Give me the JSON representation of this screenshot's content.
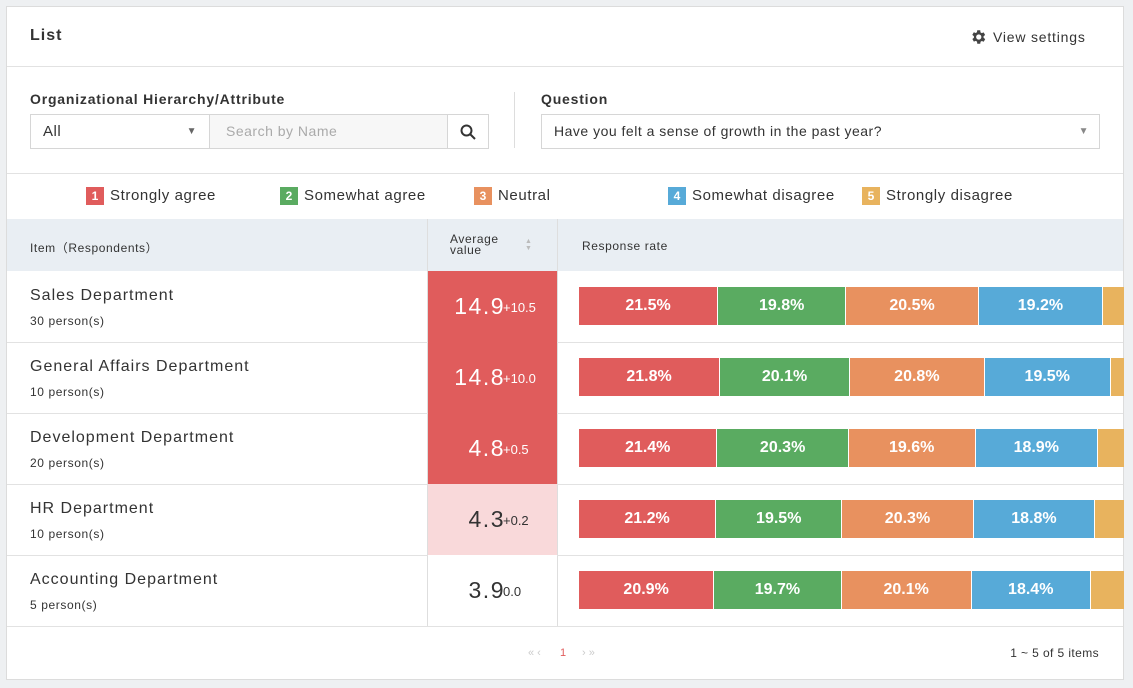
{
  "header": {
    "title": "List",
    "settings": "View settings"
  },
  "filters": {
    "hierarchy_label": "Organizational Hierarchy/Attribute",
    "hierarchy_value": "All",
    "search_placeholder": "Search by Name",
    "question_label": "Question",
    "question_value": "Have you felt a sense of growth in the past year?"
  },
  "legend": [
    {
      "num": "1",
      "label": "Strongly agree",
      "color": "#e05c5c"
    },
    {
      "num": "2",
      "label": "Somewhat agree",
      "color": "#5aab61"
    },
    {
      "num": "3",
      "label": "Neutral",
      "color": "#e8915f"
    },
    {
      "num": "4",
      "label": "Somewhat disagree",
      "color": "#57aad8"
    },
    {
      "num": "5",
      "label": "Strongly disagree",
      "color": "#e8b35e"
    }
  ],
  "table": {
    "columns": [
      "Item（Respondents）",
      "Average value",
      "Response rate"
    ],
    "rows": [
      {
        "name": "Sales Department",
        "respondents": "30 person(s)",
        "average": 14.9,
        "diff": "+10.5",
        "average_color": "#e05c5c",
        "rates": [
          21.5,
          19.8,
          20.5,
          19.2
        ],
        "rate_labels": [
          "21.5%",
          "19.8%",
          "20.5%",
          "19.2%"
        ]
      },
      {
        "name": "General Affairs Department",
        "respondents": "10 person(s)",
        "average": 14.8,
        "diff": "+10.0",
        "average_color": "#e05c5c",
        "rates": [
          21.8,
          20.1,
          20.8,
          19.5
        ],
        "rate_labels": [
          "21.8%",
          "20.1%",
          "20.8%",
          "19.5%"
        ]
      },
      {
        "name": "Development Department",
        "respondents": "20 person(s)",
        "average": 4.8,
        "diff": "+0.5",
        "average_color": "#e05c5c",
        "rates": [
          21.4,
          20.3,
          19.6,
          18.9
        ],
        "rate_labels": [
          "21.4%",
          "20.3%",
          "19.6%",
          "18.9%"
        ]
      },
      {
        "name": "HR Department",
        "respondents": "10 person(s)",
        "average": 4.3,
        "diff": "+0.2",
        "average_color": "#f9d9da",
        "rates": [
          21.2,
          19.5,
          20.3,
          18.8
        ],
        "rate_labels": [
          "21.2%",
          "19.5%",
          "20.3%",
          "18.8%"
        ]
      },
      {
        "name": "Accounting Department",
        "respondents": "5 person(s)",
        "average": 3.9,
        "diff": "0.0",
        "average_color": "#ffffff",
        "rates": [
          20.9,
          19.7,
          20.1,
          18.4
        ],
        "rate_labels": [
          "20.9%",
          "19.7%",
          "20.1%",
          "18.4%"
        ]
      }
    ]
  },
  "pagination": {
    "current": "1",
    "summary": "1 ~ 5 of 5 items"
  }
}
